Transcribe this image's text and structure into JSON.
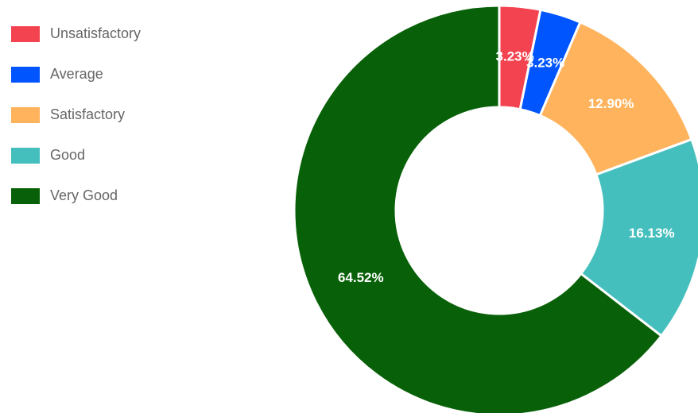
{
  "chart_data": {
    "type": "pie",
    "variant": "doughnut",
    "legend_position": "left",
    "title": "",
    "categories": [
      "Unsatisfactory",
      "Average",
      "Satisfactory",
      "Good",
      "Very Good"
    ],
    "values": [
      3.23,
      3.23,
      12.9,
      16.13,
      64.52
    ],
    "data_labels": [
      "3.23%",
      "3.23%",
      "12.90%",
      "16.13%",
      "64.52%"
    ],
    "colors": [
      "#f44350",
      "#0055ff",
      "#ffb35c",
      "#45bfbd",
      "#086108"
    ]
  }
}
